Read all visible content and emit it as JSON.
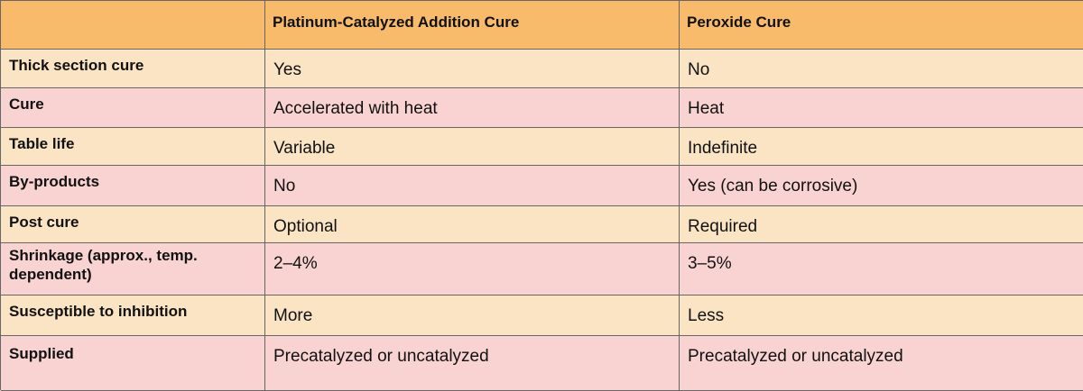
{
  "header": {
    "col0": "",
    "col1": "Platinum-Catalyzed Addition Cure",
    "col2": "Peroxide Cure"
  },
  "rows": [
    {
      "label": "Thick section cure",
      "platinum": "Yes",
      "peroxide": "No"
    },
    {
      "label": "Cure",
      "platinum": "Accelerated with heat",
      "peroxide": "Heat"
    },
    {
      "label": "Table life",
      "platinum": "Variable",
      "peroxide": "Indefinite"
    },
    {
      "label": "By-products",
      "platinum": "No",
      "peroxide": "Yes (can be corrosive)"
    },
    {
      "label": "Post cure",
      "platinum": "Optional",
      "peroxide": "Required"
    },
    {
      "label": "Shrinkage (approx., temp. dependent)",
      "platinum": "2–4%",
      "peroxide": "3–5%"
    },
    {
      "label": "Susceptible to inhibition",
      "platinum": "More",
      "peroxide": "Less"
    },
    {
      "label": "Supplied",
      "platinum": "Precatalyzed or uncatalyzed",
      "peroxide": "Precatalyzed or uncatalyzed"
    }
  ],
  "colors": {
    "header_bg": "#f8bb6c",
    "row_light": "#fbe4c4",
    "row_pink": "#f9d3d1",
    "border": "#666666"
  }
}
